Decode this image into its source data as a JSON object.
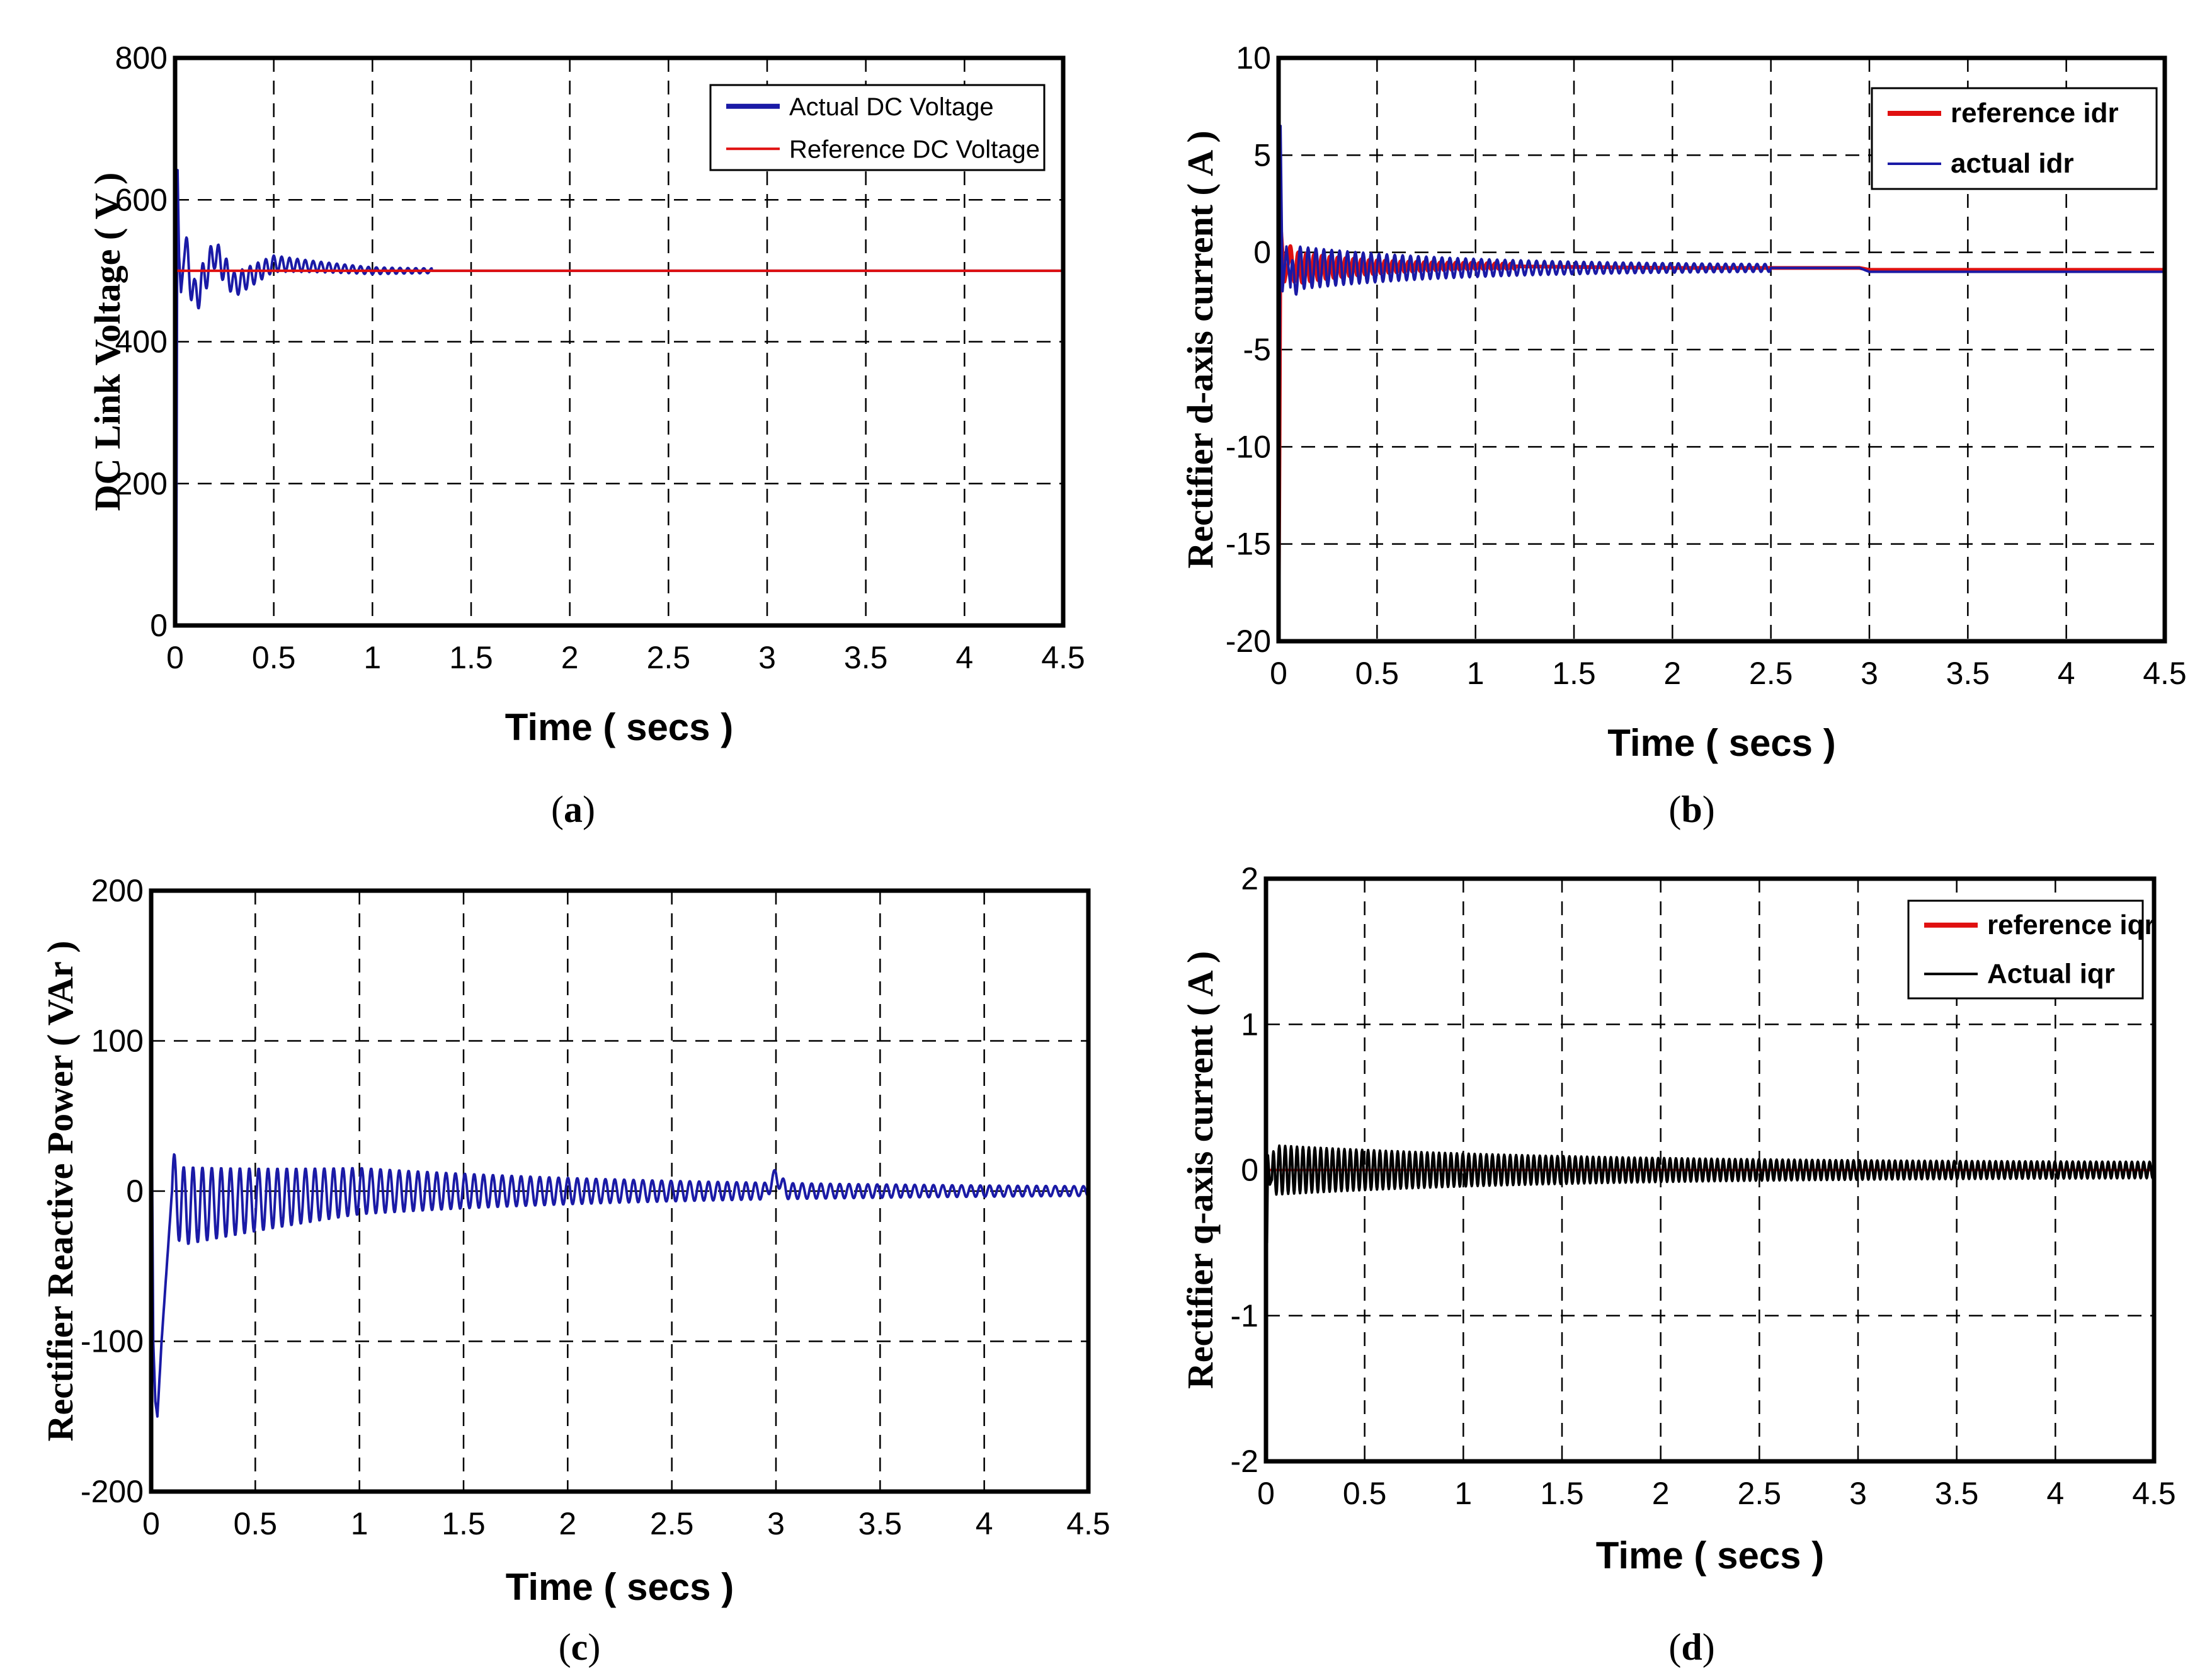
{
  "chart_data": [
    {
      "id": "a",
      "type": "line",
      "caption": "(a)",
      "xlabel": "Time ( secs )",
      "ylabel": "DC Link Voltage ( V )",
      "xlim": [
        0,
        4.5
      ],
      "ylim": [
        0,
        800
      ],
      "xticks": [
        "0",
        "0.5",
        "1",
        "1.5",
        "2",
        "2.5",
        "3",
        "3.5",
        "4",
        "4.5"
      ],
      "yticks": [
        "0",
        "200",
        "400",
        "600",
        "800"
      ],
      "legend_position": "top-right",
      "series": [
        {
          "name": "Actual DC Voltage",
          "color": "#1a1aa6",
          "x": [
            0,
            0.005,
            0.012,
            0.02,
            0.03,
            0.05,
            0.1,
            0.2,
            0.3,
            0.5,
            1,
            1.5,
            2,
            3,
            4.5
          ],
          "y": [
            0,
            0,
            650,
            520,
            470,
            530,
            460,
            525,
            480,
            510,
            500,
            500,
            500,
            500,
            500
          ],
          "oscillation": {
            "start": 0.05,
            "end": 1.3,
            "period": 0.04,
            "amplitude": [
              28,
              2
            ]
          }
        },
        {
          "name": "Reference DC Voltage",
          "color": "#e01010",
          "x": [
            0,
            4.5
          ],
          "y": [
            500,
            500
          ]
        }
      ]
    },
    {
      "id": "b",
      "type": "line",
      "caption": "(b)",
      "xlabel": "Time ( secs )",
      "ylabel": "Rectifier d-axis current ( A )",
      "xlim": [
        0,
        4.5
      ],
      "ylim": [
        -20,
        10
      ],
      "xticks": [
        "0",
        "0.5",
        "1",
        "1.5",
        "2",
        "2.5",
        "3",
        "3.5",
        "4",
        "4.5"
      ],
      "yticks": [
        "-20",
        "-15",
        "-10",
        "-5",
        "0",
        "5",
        "10"
      ],
      "legend_position": "top-right",
      "series": [
        {
          "name": "reference idr",
          "color": "#e01010",
          "x": [
            0,
            0.01,
            0.03,
            0.05,
            0.1,
            1,
            2,
            2.95,
            3,
            4.5
          ],
          "y": [
            -20,
            1.5,
            -1.5,
            -0.5,
            -0.8,
            -0.7,
            -0.8,
            -0.8,
            -0.9,
            -0.9
          ],
          "oscillation": {
            "start": 0.05,
            "end": 1.2,
            "period": 0.04,
            "amplitude": [
              0.8,
              0.1
            ]
          }
        },
        {
          "name": "actual idr",
          "color": "#1a1aa6",
          "x": [
            0,
            0.01,
            0.02,
            0.04,
            0.06,
            0.1,
            1,
            2,
            2.95,
            3,
            4.5
          ],
          "y": [
            -20,
            6.5,
            -2,
            0.3,
            -1.8,
            -0.8,
            -0.8,
            -0.8,
            -0.8,
            -1,
            -1
          ],
          "oscillation": {
            "start": 0.06,
            "end": 2.5,
            "period": 0.04,
            "amplitude": [
              1.0,
              0.15
            ]
          }
        }
      ]
    },
    {
      "id": "c",
      "type": "line",
      "caption": "(c)",
      "xlabel": "Time ( secs )",
      "ylabel": "Rectifier Reactive Power ( VAr )",
      "xlim": [
        0,
        4.5
      ],
      "ylim": [
        -200,
        200
      ],
      "xticks": [
        "0",
        "0.5",
        "1",
        "1.5",
        "2",
        "2.5",
        "3",
        "3.5",
        "4",
        "4.5"
      ],
      "yticks": [
        "-200",
        "-100",
        "0",
        "100",
        "200"
      ],
      "legend_position": "none",
      "series": [
        {
          "name": "Rectifier Reactive Power",
          "color": "#1a1aa6",
          "x": [
            0,
            0.005,
            0.01,
            0.02,
            0.03,
            0.05,
            0.08,
            0.1,
            0.15,
            1,
            2,
            2.95,
            3.0,
            3.05,
            3.1,
            4.5
          ],
          "y": [
            200,
            0,
            -100,
            -140,
            -150,
            -100,
            -40,
            0,
            -10,
            0,
            0,
            0,
            10,
            0,
            0,
            0
          ],
          "oscillation": {
            "start": 0.1,
            "end": 4.5,
            "period": 0.045,
            "amplitude": [
              25,
              2
            ]
          }
        }
      ]
    },
    {
      "id": "d",
      "type": "line",
      "caption": "(d)",
      "xlabel": "Time ( secs )",
      "ylabel": "Rectifier q-axis current ( A )",
      "xlim": [
        0,
        4.5
      ],
      "ylim": [
        -2,
        2
      ],
      "xticks": [
        "0",
        "0.5",
        "1",
        "1.5",
        "2",
        "2.5",
        "3",
        "3.5",
        "4",
        "4.5"
      ],
      "yticks": [
        "-2",
        "-1",
        "0",
        "1",
        "2"
      ],
      "legend_position": "top-right",
      "series": [
        {
          "name": "reference iqr",
          "color": "#e01010",
          "x": [
            0,
            4.5
          ],
          "y": [
            0,
            0
          ]
        },
        {
          "name": "Actual iqr",
          "color": "#000000",
          "x": [
            0,
            0.005,
            0.01,
            0.02,
            0.05,
            4.5
          ],
          "y": [
            2,
            -0.5,
            0.1,
            -0.1,
            0,
            0
          ],
          "oscillation": {
            "start": 0.03,
            "end": 4.5,
            "period": 0.03,
            "amplitude": [
              0.12,
              0.05
            ]
          }
        }
      ]
    }
  ]
}
